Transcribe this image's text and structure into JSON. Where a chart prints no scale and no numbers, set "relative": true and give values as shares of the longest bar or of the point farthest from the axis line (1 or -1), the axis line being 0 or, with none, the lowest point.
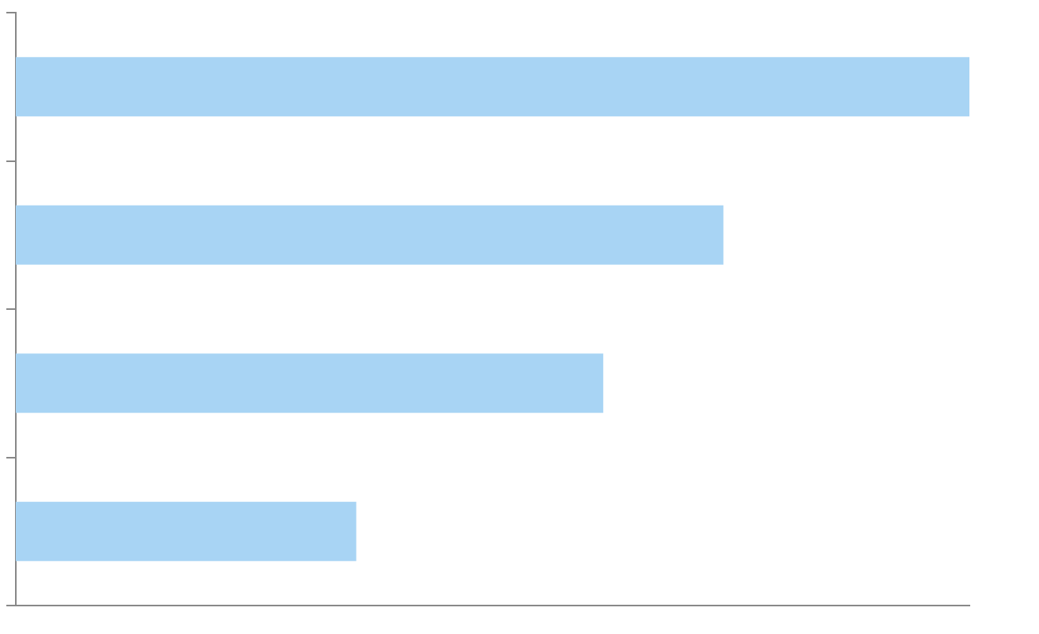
{
  "chart_data": {
    "type": "bar",
    "orientation": "horizontal",
    "relative": true,
    "categories": [
      null,
      null,
      null,
      null
    ],
    "values": [
      1,
      0.742,
      0.616,
      0.357
    ],
    "color": "#a8d4f4"
  }
}
